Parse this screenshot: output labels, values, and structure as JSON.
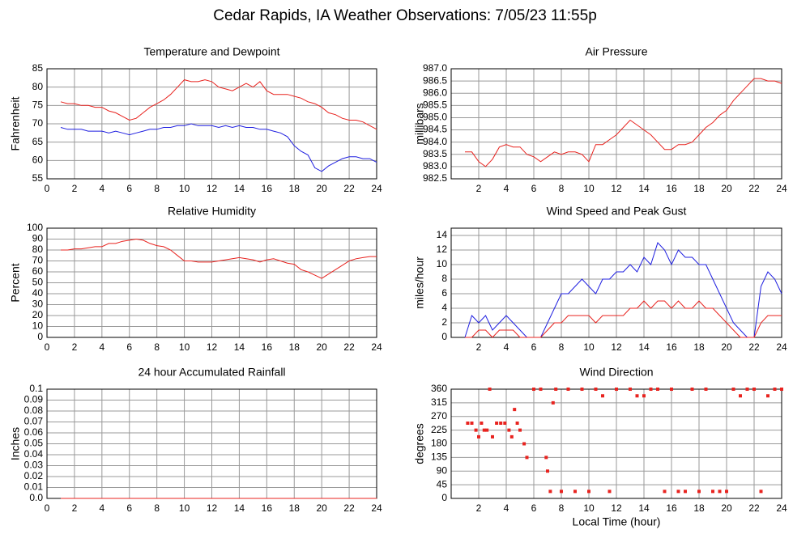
{
  "title": "Cedar Rapids, IA Weather Observations: 7/05/23 11:55p",
  "chart_data": [
    {
      "type": "line",
      "title": "Temperature and Dewpoint",
      "ylabel": "Fahrenheit",
      "x": [
        1,
        1.5,
        2,
        2.5,
        3,
        3.5,
        4,
        4.5,
        5,
        5.5,
        6,
        6.5,
        7,
        7.5,
        8,
        8.5,
        9,
        9.5,
        10,
        10.5,
        11,
        11.5,
        12,
        12.5,
        13,
        13.5,
        14,
        14.5,
        15,
        15.5,
        16,
        16.5,
        17,
        17.5,
        18,
        18.5,
        19,
        19.5,
        20,
        20.5,
        21,
        21.5,
        22,
        22.5,
        23,
        23.5,
        24
      ],
      "series": [
        {
          "color": "#e8231f",
          "values": [
            76,
            75.5,
            75.5,
            75,
            75,
            74.5,
            74.5,
            73.5,
            73,
            72,
            71,
            71.5,
            73,
            74.5,
            75.5,
            76.5,
            78,
            80,
            82,
            81.5,
            81.5,
            82,
            81.5,
            80,
            79.5,
            79,
            80,
            81,
            80,
            81.5,
            79,
            78,
            78,
            78,
            77.5,
            77,
            76,
            75.5,
            74.5,
            73,
            72.5,
            71.5,
            71,
            71,
            70.5,
            69.5,
            68.5
          ]
        },
        {
          "color": "#1f1fe0",
          "values": [
            69,
            68.5,
            68.5,
            68.5,
            68,
            68,
            68,
            67.5,
            68,
            67.5,
            67,
            67.5,
            68,
            68.5,
            68.5,
            69,
            69,
            69.5,
            69.5,
            70,
            69.5,
            69.5,
            69.5,
            69,
            69.5,
            69,
            69.5,
            69,
            69,
            68.5,
            68.5,
            68,
            67.5,
            66.5,
            64,
            62.5,
            61.5,
            58,
            57,
            58.5,
            59.5,
            60.5,
            61,
            61,
            60.5,
            60.5,
            59.5
          ]
        }
      ],
      "xlim": [
        0,
        24
      ],
      "xticks": [
        0,
        2,
        4,
        6,
        8,
        10,
        12,
        14,
        16,
        18,
        20,
        22,
        24
      ],
      "ylim": [
        55,
        85
      ],
      "yticks": [
        55,
        60,
        65,
        70,
        75,
        80,
        85
      ],
      "grid": true
    },
    {
      "type": "line",
      "title": "Air Pressure",
      "ylabel": "millibars",
      "x": [
        1,
        1.5,
        2,
        2.5,
        3,
        3.5,
        4,
        4.5,
        5,
        5.5,
        6,
        6.5,
        7,
        7.5,
        8,
        8.5,
        9,
        9.5,
        10,
        10.5,
        11,
        11.5,
        12,
        12.5,
        13,
        13.5,
        14,
        14.5,
        15,
        15.5,
        16,
        16.5,
        17,
        17.5,
        18,
        18.5,
        19,
        19.5,
        20,
        20.5,
        21,
        21.5,
        22,
        22.5,
        23,
        23.5,
        24
      ],
      "series": [
        {
          "color": "#e8231f",
          "values": [
            983.6,
            983.6,
            983.2,
            983.0,
            983.3,
            983.8,
            983.9,
            983.8,
            983.8,
            983.5,
            983.4,
            983.2,
            983.4,
            983.6,
            983.5,
            983.6,
            983.6,
            983.5,
            983.2,
            983.9,
            983.9,
            984.1,
            984.3,
            984.6,
            984.9,
            984.7,
            984.5,
            984.3,
            984.0,
            983.7,
            983.7,
            983.9,
            983.9,
            984.0,
            984.3,
            984.6,
            984.8,
            985.1,
            985.3,
            985.7,
            986.0,
            986.3,
            986.6,
            986.6,
            986.5,
            986.5,
            986.4
          ]
        }
      ],
      "xlim": [
        0,
        24
      ],
      "xticks": [
        2,
        4,
        6,
        8,
        10,
        12,
        14,
        16,
        18,
        20,
        22,
        24
      ],
      "ylim": [
        982.5,
        987
      ],
      "yticks": [
        982.5,
        {
          "value": 983,
          "label": "983.0"
        },
        983.5,
        {
          "value": 984,
          "label": "984.0"
        },
        984.5,
        {
          "value": 985,
          "label": "985.0"
        },
        985.5,
        {
          "value": 986,
          "label": "986.0"
        },
        986.5,
        {
          "value": 987,
          "label": "987.0"
        }
      ],
      "grid": true
    },
    {
      "type": "line",
      "title": "Relative Humidity",
      "ylabel": "Percent",
      "x": [
        1,
        1.5,
        2,
        2.5,
        3,
        3.5,
        4,
        4.5,
        5,
        5.5,
        6,
        6.5,
        7,
        7.5,
        8,
        8.5,
        9,
        9.5,
        10,
        10.5,
        11,
        11.5,
        12,
        12.5,
        13,
        13.5,
        14,
        14.5,
        15,
        15.5,
        16,
        16.5,
        17,
        17.5,
        18,
        18.5,
        19,
        19.5,
        20,
        20.5,
        21,
        21.5,
        22,
        22.5,
        23,
        23.5,
        24
      ],
      "series": [
        {
          "color": "#e8231f",
          "values": [
            80,
            80,
            81,
            81,
            82,
            83,
            83,
            86,
            86,
            88,
            89,
            90,
            89,
            86,
            84,
            83,
            80,
            75,
            70,
            70,
            69,
            69,
            69,
            70,
            71,
            72,
            73,
            72,
            71,
            69,
            71,
            72,
            70,
            68,
            67,
            62,
            60,
            57,
            54,
            58,
            62,
            66,
            70,
            72,
            73,
            74,
            74
          ]
        }
      ],
      "xlim": [
        0,
        24
      ],
      "xticks": [
        0,
        2,
        4,
        6,
        8,
        10,
        12,
        14,
        16,
        18,
        20,
        22,
        24
      ],
      "ylim": [
        0,
        100
      ],
      "yticks": [
        0,
        10,
        20,
        30,
        40,
        50,
        60,
        70,
        80,
        90,
        100
      ],
      "grid": true
    },
    {
      "type": "line",
      "title": "Wind Speed and Peak Gust",
      "ylabel": "miles/hour",
      "x": [
        1,
        1.5,
        2,
        2.5,
        3,
        3.5,
        4,
        4.5,
        5,
        5.5,
        6,
        6.5,
        7,
        7.5,
        8,
        8.5,
        9,
        9.5,
        10,
        10.5,
        11,
        11.5,
        12,
        12.5,
        13,
        13.5,
        14,
        14.5,
        15,
        15.5,
        16,
        16.5,
        17,
        17.5,
        18,
        18.5,
        19,
        19.5,
        20,
        20.5,
        21,
        21.5,
        22,
        22.5,
        23,
        23.5,
        24
      ],
      "series": [
        {
          "color": "#1f1fe0",
          "values": [
            0,
            3,
            2,
            3,
            1,
            2,
            3,
            2,
            1,
            0,
            0,
            0,
            2,
            4,
            6,
            6,
            7,
            8,
            7,
            6,
            8,
            8,
            9,
            9,
            10,
            9,
            11,
            10,
            13,
            12,
            10,
            12,
            11,
            11,
            10,
            10,
            8,
            6,
            4,
            2,
            1,
            0,
            0,
            7,
            9,
            8,
            6
          ]
        },
        {
          "color": "#e8231f",
          "values": [
            0,
            0,
            1,
            1,
            0,
            1,
            1,
            1,
            0,
            0,
            0,
            0,
            1,
            2,
            2,
            3,
            3,
            3,
            3,
            2,
            3,
            3,
            3,
            3,
            4,
            4,
            5,
            4,
            5,
            5,
            4,
            5,
            4,
            4,
            5,
            4,
            4,
            3,
            2,
            1,
            0,
            0,
            0,
            2,
            3,
            3,
            3
          ]
        }
      ],
      "xlim": [
        0,
        24
      ],
      "xticks": [
        2,
        4,
        6,
        8,
        10,
        12,
        14,
        16,
        18,
        20,
        22,
        24
      ],
      "ylim": [
        0,
        15
      ],
      "yticks": [
        0,
        2,
        4,
        6,
        8,
        10,
        12,
        14
      ],
      "grid": true
    },
    {
      "type": "line",
      "title": "24 hour Accumulated Rainfall",
      "ylabel": "Inches",
      "x": [
        1,
        24
      ],
      "series": [
        {
          "color": "#e8231f",
          "values": [
            0,
            0
          ]
        }
      ],
      "xlim": [
        0,
        24
      ],
      "xticks": [
        0,
        2,
        4,
        6,
        8,
        10,
        12,
        14,
        16,
        18,
        20,
        22,
        24
      ],
      "ylim": [
        0,
        0.1
      ],
      "yticks": [
        {
          "value": 0,
          "label": "0.0"
        },
        0.01,
        0.02,
        0.03,
        0.04,
        0.05,
        0.06,
        0.07,
        0.08,
        0.09,
        0.1
      ],
      "grid": true
    },
    {
      "type": "scatter",
      "title": "Wind Direction",
      "ylabel": "degrees",
      "xlabel": "Local Time (hour)",
      "x": [
        1.2,
        1.5,
        1.8,
        2,
        2.2,
        2.4,
        2.6,
        2.8,
        3,
        3.3,
        3.6,
        3.9,
        4.2,
        4.4,
        4.6,
        4.8,
        5,
        5.3,
        5.5,
        6,
        6.5,
        6.9,
        7,
        7.2,
        7.4,
        7.6,
        8,
        8.5,
        9,
        9.5,
        10,
        10.5,
        11,
        11.5,
        12,
        13,
        13.5,
        14,
        14.5,
        15,
        15.5,
        16,
        16.5,
        17,
        17.5,
        18,
        18.5,
        19,
        19.5,
        20,
        20.5,
        21,
        21.5,
        22,
        22.5,
        23,
        23.5,
        24
      ],
      "series": [
        {
          "color": "#e8231f",
          "values": [
            248,
            248,
            225,
            203,
            248,
            225,
            225,
            360,
            203,
            248,
            248,
            248,
            225,
            203,
            293,
            248,
            225,
            180,
            135,
            360,
            360,
            135,
            90,
            23,
            315,
            360,
            23,
            360,
            23,
            360,
            23,
            360,
            338,
            23,
            360,
            360,
            338,
            338,
            360,
            360,
            23,
            360,
            23,
            23,
            360,
            23,
            360,
            23,
            23,
            23,
            360,
            338,
            360,
            360,
            23,
            338,
            360,
            360
          ]
        }
      ],
      "xlim": [
        0,
        24
      ],
      "xticks": [
        2,
        4,
        6,
        8,
        10,
        12,
        14,
        16,
        18,
        20,
        22,
        24
      ],
      "ylim": [
        0,
        360
      ],
      "yticks": [
        0,
        45,
        90,
        135,
        180,
        225,
        270,
        315,
        360
      ],
      "grid": true
    }
  ]
}
